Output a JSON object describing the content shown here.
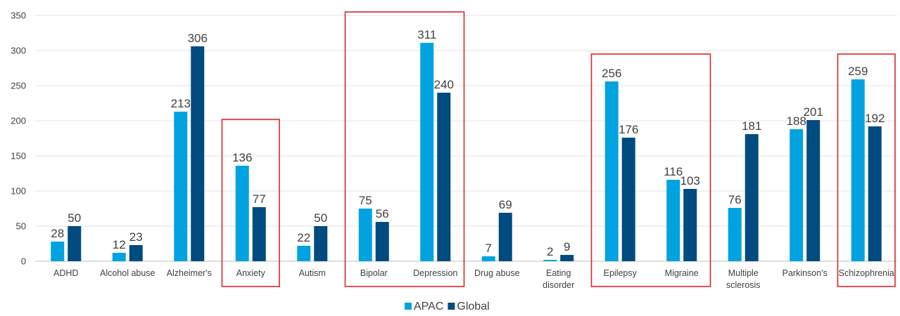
{
  "chart_data": {
    "type": "bar",
    "title": "",
    "xlabel": "",
    "ylabel": "",
    "ylim": [
      0,
      350
    ],
    "yticks": [
      0,
      50,
      100,
      150,
      200,
      250,
      300,
      350
    ],
    "grid": true,
    "legend_position": "bottom-center",
    "categories": [
      [
        "ADHD"
      ],
      [
        "Alcohol abuse"
      ],
      [
        "Alzheimer's"
      ],
      [
        "Anxiety"
      ],
      [
        "Autism"
      ],
      [
        "Bipolar"
      ],
      [
        "Depression"
      ],
      [
        "Drug abuse"
      ],
      [
        "Eating",
        "disorder"
      ],
      [
        "Epilepsy"
      ],
      [
        "Migraine"
      ],
      [
        "Multiple",
        "sclerosis"
      ],
      [
        "Parkinson's"
      ],
      [
        "Schizophrenia"
      ]
    ],
    "series": [
      {
        "name": "APAC",
        "color": "#00a3e0",
        "values": [
          28,
          12,
          213,
          136,
          22,
          75,
          311,
          7,
          2,
          256,
          116,
          76,
          188,
          259
        ]
      },
      {
        "name": "Global",
        "color": "#004b7f",
        "values": [
          50,
          23,
          306,
          77,
          50,
          56,
          240,
          69,
          9,
          176,
          103,
          181,
          201,
          192
        ]
      }
    ],
    "highlight_color": "#d9262c",
    "highlighted_groups": [
      [
        "Anxiety"
      ],
      [
        "Bipolar",
        "Depression"
      ],
      [
        "Epilepsy",
        "Migraine"
      ],
      [
        "Schizophrenia"
      ]
    ]
  }
}
